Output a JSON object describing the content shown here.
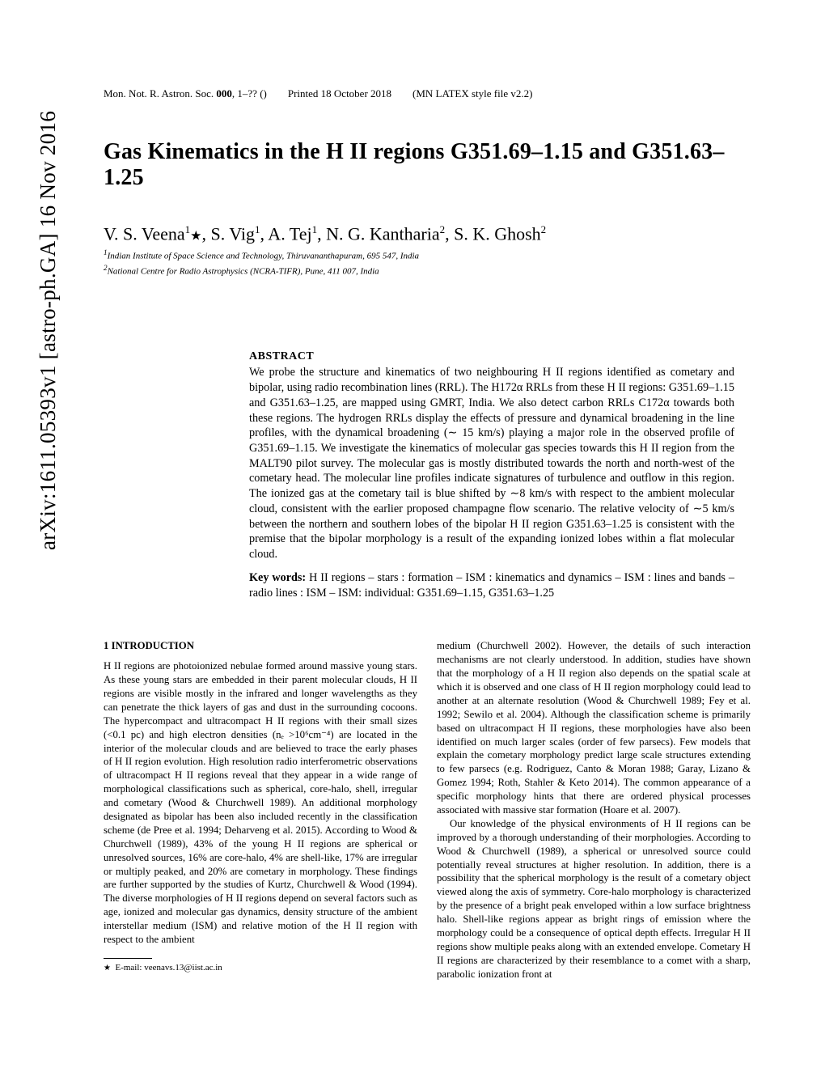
{
  "arxiv_stamp": "arXiv:1611.05393v1  [astro-ph.GA]  16 Nov 2016",
  "header": {
    "journal": "Mon. Not. R. Astron. Soc.",
    "volume": "000",
    "pages": ", 1–?? ()",
    "printed": "Printed 18 October 2018",
    "style": "(MN LATEX style file v2.2)"
  },
  "title_pre": "Gas Kinematics in the H ",
  "title_sc": "II",
  "title_post": " regions G351.69–1.15 and G351.63–1.25",
  "authors_html": "V. S. Veena<sup>1</sup>*, S. Vig<sup>1</sup>, A. Tej<sup>1</sup>, N. G. Kantharia<sup>2</sup>, S. K. Ghosh<sup>2</sup>",
  "affiliations": {
    "a1": "1 Indian Institute of Space Science and Technology, Thiruvananthapuram, 695 547, India",
    "a2": "2 National Centre for Radio Astrophysics (NCRA-TIFR), Pune, 411 007, India"
  },
  "abstract": {
    "heading": "ABSTRACT",
    "text": "We probe the structure and kinematics of two neighbouring H II regions identified as cometary and bipolar, using radio recombination lines (RRL). The H172α RRLs from these H II regions: G351.69–1.15 and G351.63–1.25, are mapped using GMRT, India. We also detect carbon RRLs C172α towards both these regions. The hydrogen RRLs display the effects of pressure and dynamical broadening in the line profiles, with the dynamical broadening (∼ 15 km/s) playing a major role in the observed profile of G351.69–1.15. We investigate the kinematics of molecular gas species towards this H II region from the MALT90 pilot survey. The molecular gas is mostly distributed towards the north and north-west of the cometary head. The molecular line profiles indicate signatures of turbulence and outflow in this region. The ionized gas at the cometary tail is blue shifted by ∼8 km/s with respect to the ambient molecular cloud, consistent with the earlier proposed champagne flow scenario. The relative velocity of ∼5 km/s between the northern and southern lobes of the bipolar H II region G351.63–1.25 is consistent with the premise that the bipolar morphology is a result of the expanding ionized lobes within a flat molecular cloud."
  },
  "keywords": {
    "label": "Key words:",
    "text": "  H II regions – stars : formation – ISM : kinematics and dynamics – ISM : lines and bands – radio lines : ISM – ISM: individual: G351.69–1.15, G351.63–1.25"
  },
  "section1": {
    "heading": "1   INTRODUCTION",
    "col1_p1": "H II regions are photoionized nebulae formed around massive young stars. As these young stars are embedded in their parent molecular clouds, H II regions are visible mostly in the infrared and longer wavelengths as they can penetrate the thick layers of gas and dust in the surrounding cocoons. The hypercompact and ultracompact H II regions with their small sizes (<0.1 pc) and high electron densities (nₑ >10⁶cm⁻⁴) are located in the interior of the molecular clouds and are believed to trace the early phases of H II region evolution. High resolution radio interferometric observations of ultracompact H II regions reveal that they appear in a wide range of morphological classifications such as spherical, core-halo, shell, irregular and cometary (Wood & Churchwell 1989). An additional morphology designated as bipolar has been also included recently in the classification scheme (de Pree et al. 1994; Deharveng et al. 2015). According to Wood & Churchwell (1989), 43% of the young H II regions are spherical or unresolved sources, 16% are core-halo, 4% are shell-like, 17% are irregular or multiply peaked, and 20% are cometary in morphology. These findings are further supported by the studies of Kurtz, Churchwell & Wood (1994). The diverse morphologies of H II regions depend on several factors such as age, ionized and molecular gas dynamics, density structure of the ambient interstellar medium (ISM) and relative motion of the H II region with respect to the ambient",
    "col2_p1": "medium (Churchwell 2002). However, the details of such interaction mechanisms are not clearly understood. In addition, studies have shown that the morphology of a H II region also depends on the spatial scale at which it is observed and one class of H II region morphology could lead to another at an alternate resolution (Wood & Churchwell 1989; Fey et al. 1992; Sewilo et al. 2004). Although the classification scheme is primarily based on ultracompact H II regions, these morphologies have also been identified on much larger scales (order of few parsecs). Few models that explain the cometary morphology predict large scale structures extending to few parsecs (e.g. Rodriguez, Canto & Moran 1988; Garay, Lizano & Gomez 1994; Roth, Stahler & Keto 2014). The common appearance of a specific morphology hints that there are ordered physical processes associated with massive star formation (Hoare et al. 2007).",
    "col2_p2": "Our knowledge of the physical environments of H II regions can be improved by a thorough understanding of their morphologies. According to Wood & Churchwell (1989), a spherical or unresolved source could potentially reveal structures at higher resolution. In addition, there is a possibility that the spherical morphology is the result of a cometary object viewed along the axis of symmetry. Core-halo morphology is characterized by the presence of a bright peak enveloped within a low surface brightness halo. Shell-like regions appear as bright rings of emission where the morphology could be a consequence of optical depth effects. Irregular H II regions show multiple peaks along with an extended envelope. Cometary H II regions are characterized by their resemblance to a comet with a sharp, parabolic ionization front at"
  },
  "footnote": "*  E-mail: veenavs.13@iist.ac.in"
}
